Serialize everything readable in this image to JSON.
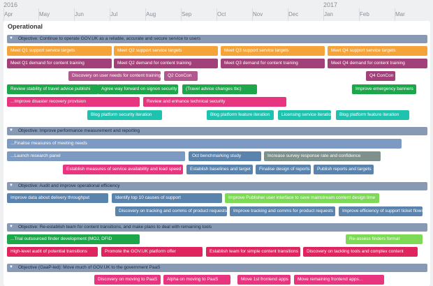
{
  "timeline": {
    "years": [
      "2016",
      "2017"
    ],
    "months": [
      "Apr",
      "May",
      "Jun",
      "Jul",
      "Aug",
      "Sep",
      "Oct",
      "Nov",
      "Dec",
      "Jan",
      "Feb",
      "Mar"
    ]
  },
  "panel_title": "Operational",
  "objectives": [
    {
      "title": "Objective: Continue to operate GOV.UK as a reliable, accurate and secure service to users",
      "rows": [
        [
          {
            "label": "Meet Q1 support service targets"
          },
          {
            "label": "Meet Q2 support service targets"
          },
          {
            "label": "Meet Q3 support service targets"
          },
          {
            "label": "Meet Q4 support service targets"
          }
        ],
        [
          {
            "label": "Meet Q1 demand for content training"
          },
          {
            "label": "Meet Q2 demand for content training"
          },
          {
            "label": "Meet Q3 demand for content training"
          },
          {
            "label": "Meet Q4 demand for content training"
          }
        ],
        [
          {
            "label": "Discovery on user needs for content training"
          },
          {
            "label": "Q2 ConCon"
          },
          {
            "label": "Q4 ConCon"
          }
        ],
        [
          {
            "label": "Review stability of travel advice publishi"
          },
          {
            "label": "Agree way forward on signon security"
          },
          {
            "label": "(Travel advice changes tbc)"
          },
          {
            "label": "Improve emergency banners"
          }
        ],
        [
          {
            "label": "...Improve disaster recovery provision"
          },
          {
            "label": "Review and enhance technical security"
          }
        ],
        [
          {
            "label": "Blog platform security iteration"
          },
          {
            "label": "Blog platform feature iteration"
          },
          {
            "label": "Licensing service iteration"
          },
          {
            "label": "Blog platform feature iteration"
          }
        ]
      ]
    },
    {
      "title": "Objective: Improve performance measurement and reporting",
      "rows": [
        [
          {
            "label": "...Finalise measures of meeting needs"
          }
        ],
        [
          {
            "label": "...Launch research panel"
          },
          {
            "label": "Oct benchmarking study"
          },
          {
            "label": "Increase survey response rate and confidence"
          }
        ],
        [
          {
            "label": "Establish measures of service availability and load speed"
          },
          {
            "label": "Establish baselines and target"
          },
          {
            "label": "Finalise design of reports"
          },
          {
            "label": "Publish reports and targets"
          }
        ]
      ]
    },
    {
      "title": "Objective: Audit and improve operational efficiency",
      "rows": [
        [
          {
            "label": "Improve data about delivery throughput"
          },
          {
            "label": "Identify top 10 causes of support"
          },
          {
            "label": "Improve Publisher user interface to save mainstream content design time"
          }
        ],
        [
          {
            "label": "Discovery on tracking and comms of product requests"
          },
          {
            "label": "Improve tracking and comms for product requests"
          },
          {
            "label": "Improve efficiency of support ticket flows"
          }
        ]
      ]
    },
    {
      "title": "Objective: Re-establish team for content transitions, and make plans to deal with remaining tools",
      "rows": [
        [
          {
            "label": "...Trial outsourced finder development (MOJ, DFID"
          },
          {
            "label": "Re-assess finders format"
          }
        ],
        [
          {
            "label": "High-level audit of potential transitions"
          },
          {
            "label": "Promote the GOV.UK platform offer"
          },
          {
            "label": "Establish team for simple content transitions"
          },
          {
            "label": "Discovery on tackling tools and complex content"
          }
        ]
      ]
    },
    {
      "title": "Objective (GaaP-led): Move much of GOV.UK to the government PaaS",
      "rows": [
        [
          {
            "label": "Discovery on moving to PaaS"
          },
          {
            "label": "Alpha on moving to PaaS"
          },
          {
            "label": "Move 1st frontend apps"
          },
          {
            "label": "Move remaining frontend apps..."
          }
        ]
      ]
    }
  ]
}
